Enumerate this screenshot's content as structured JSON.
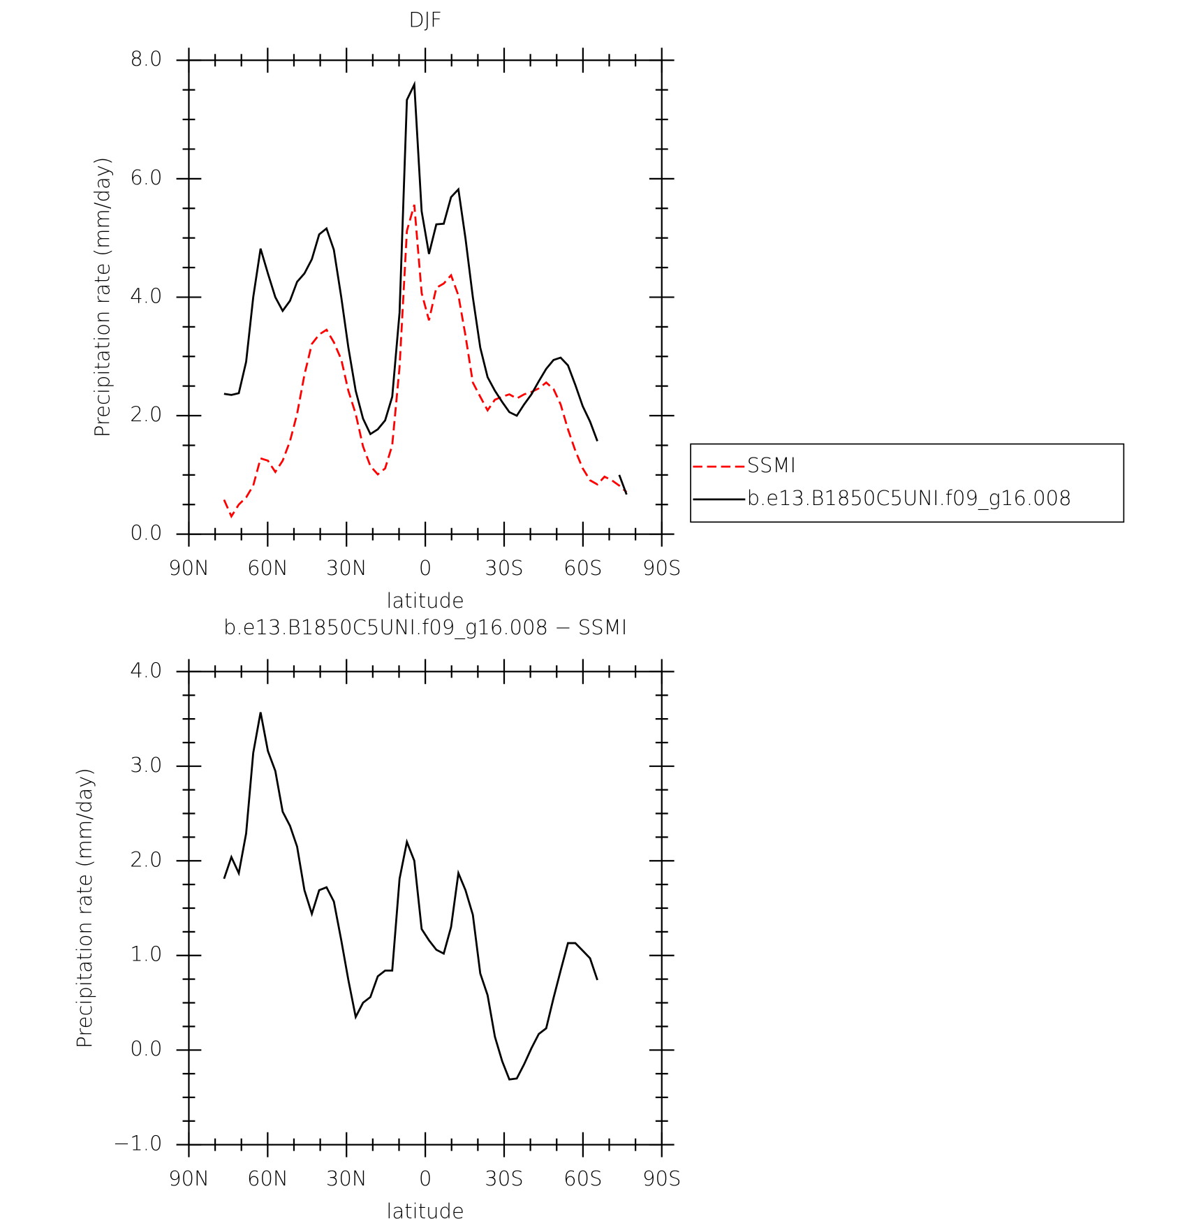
{
  "chart_data": [
    {
      "type": "line",
      "title": "DJF",
      "xlabel": "latitude",
      "ylabel": "Precipitation rate (mm/day)",
      "x": [
        76.6,
        73.8,
        71.0,
        68.2,
        65.5,
        62.7,
        59.9,
        57.1,
        54.3,
        51.5,
        48.8,
        46.0,
        43.2,
        40.4,
        37.6,
        34.8,
        32.0,
        29.3,
        26.5,
        23.7,
        20.9,
        18.1,
        15.3,
        12.6,
        9.8,
        7.0,
        4.2,
        1.4,
        -1.4,
        -4.2,
        -7.0,
        -9.8,
        -12.6,
        -15.3,
        -18.1,
        -20.9,
        -23.7,
        -26.5,
        -29.3,
        -32.0,
        -34.8,
        -37.6,
        -40.4,
        -43.2,
        -46.0,
        -48.8,
        -51.5,
        -54.3,
        -57.1,
        -59.9,
        -62.7,
        -65.5,
        -68.2,
        -71.0,
        -73.8,
        -76.6
      ],
      "series": [
        {
          "name": "SSMI",
          "color": "#ff0000",
          "linestyle": "dashed",
          "values": [
            0.58,
            0.3,
            0.5,
            0.62,
            0.82,
            1.28,
            1.24,
            1.05,
            1.24,
            1.57,
            2.03,
            2.69,
            3.21,
            3.37,
            3.45,
            3.24,
            2.95,
            2.42,
            2.03,
            1.48,
            1.15,
            1.01,
            1.11,
            1.5,
            2.82,
            5.12,
            5.56,
            4.07,
            3.61,
            4.16,
            4.23,
            4.37,
            4.03,
            3.35,
            2.56,
            2.32,
            2.09,
            2.27,
            2.32,
            2.36,
            2.29,
            2.36,
            2.4,
            2.46,
            2.56,
            2.45,
            2.19,
            1.77,
            1.41,
            1.11,
            0.91,
            0.84,
            0.97,
            0.91,
            0.82,
            0.71
          ]
        },
        {
          "name": "b.e13.B1850C5UNI.f09_g16.008",
          "color": "#000000",
          "linestyle": "solid",
          "values": [
            2.37,
            2.35,
            2.38,
            2.91,
            4.0,
            4.82,
            4.4,
            4.0,
            3.77,
            3.94,
            4.26,
            4.4,
            4.64,
            5.06,
            5.16,
            4.8,
            4.0,
            3.15,
            2.42,
            1.95,
            1.69,
            1.77,
            1.92,
            2.32,
            3.74,
            7.33,
            7.59,
            5.45,
            4.73,
            5.23,
            5.24,
            5.69,
            5.82,
            4.99,
            4.0,
            3.15,
            2.65,
            2.42,
            2.23,
            2.06,
            2.0,
            2.19,
            2.36,
            2.58,
            2.79,
            2.94,
            2.98,
            2.85,
            2.52,
            2.16,
            1.9,
            1.57,
            null,
            null,
            1.0,
            0.67
          ]
        }
      ],
      "xlim": [
        90,
        -90
      ],
      "xticks": [
        {
          "value": 90,
          "label": "90N"
        },
        {
          "value": 60,
          "label": "60N"
        },
        {
          "value": 30,
          "label": "30N"
        },
        0,
        {
          "value": -30,
          "label": "30S"
        },
        {
          "value": -60,
          "label": "60S"
        },
        {
          "value": -90,
          "label": "90S"
        }
      ],
      "ylim": [
        0,
        8
      ],
      "yticks": [
        {
          "value": 0,
          "label": "0.0"
        },
        {
          "value": 2,
          "label": "2.0"
        },
        {
          "value": 4,
          "label": "4.0"
        },
        {
          "value": 6,
          "label": "6.0"
        },
        {
          "value": 8,
          "label": "8.0"
        }
      ],
      "legend": "right"
    },
    {
      "type": "line",
      "title": "b.e13.B1850C5UNI.f09_g16.008 − SSMI",
      "xlabel": "latitude",
      "ylabel": "Precipitation rate (mm/day)",
      "x": [
        76.6,
        73.8,
        71.0,
        68.2,
        65.5,
        62.7,
        59.9,
        57.1,
        54.3,
        51.5,
        48.8,
        46.0,
        43.2,
        40.4,
        37.6,
        34.8,
        32.0,
        29.3,
        26.5,
        23.7,
        20.9,
        18.1,
        15.3,
        12.6,
        9.8,
        7.0,
        4.2,
        1.4,
        -1.4,
        -4.2,
        -7.0,
        -9.8,
        -12.6,
        -15.3,
        -18.1,
        -20.9,
        -23.7,
        -26.5,
        -29.3,
        -32.0,
        -34.8,
        -37.6,
        -40.4,
        -43.2,
        -46.0,
        -48.8,
        -51.5,
        -54.3,
        -57.1,
        -59.9,
        -62.7,
        -65.5,
        -68.2,
        -71.0,
        -73.8,
        -76.6
      ],
      "values": [
        1.81,
        2.04,
        1.87,
        2.29,
        3.14,
        3.57,
        3.16,
        2.95,
        2.52,
        2.37,
        2.15,
        1.69,
        1.44,
        1.69,
        1.72,
        1.57,
        1.16,
        0.74,
        0.35,
        0.5,
        0.56,
        0.78,
        0.84,
        0.84,
        1.81,
        2.2,
        2.0,
        1.28,
        1.16,
        1.06,
        1.02,
        1.3,
        1.87,
        1.69,
        1.43,
        0.81,
        0.58,
        0.14,
        -0.12,
        -0.31,
        -0.3,
        -0.15,
        0.02,
        0.17,
        0.23,
        0.55,
        0.84,
        1.13,
        1.13,
        1.05,
        0.97,
        0.74,
        null,
        null,
        null,
        null
      ],
      "color": "#000000",
      "xlim": [
        90,
        -90
      ],
      "xticks": [
        {
          "value": 90,
          "label": "90N"
        },
        {
          "value": 60,
          "label": "60N"
        },
        {
          "value": 30,
          "label": "30N"
        },
        0,
        {
          "value": -30,
          "label": "30S"
        },
        {
          "value": -60,
          "label": "60S"
        },
        {
          "value": -90,
          "label": "90S"
        }
      ],
      "ylim": [
        -1,
        4
      ],
      "yticks": [
        {
          "value": -1,
          "label": "−1.0"
        },
        {
          "value": 0,
          "label": "0.0"
        },
        {
          "value": 1,
          "label": "1.0"
        },
        {
          "value": 2,
          "label": "2.0"
        },
        {
          "value": 3,
          "label": "3.0"
        },
        {
          "value": 4,
          "label": "4.0"
        }
      ]
    }
  ]
}
